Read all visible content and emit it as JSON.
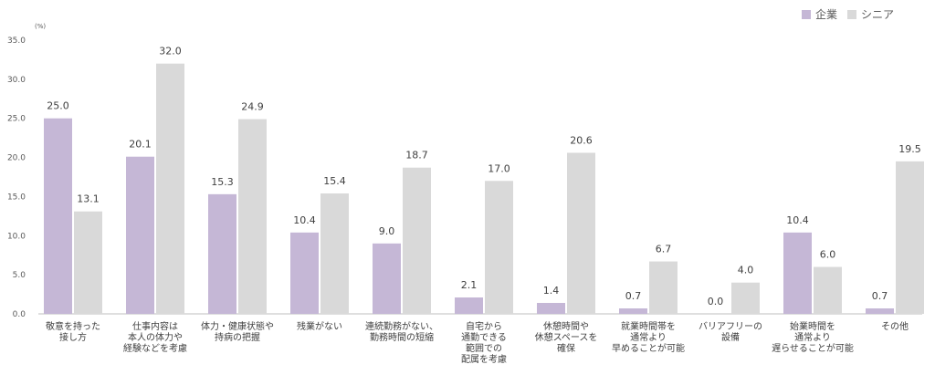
{
  "chart_data": {
    "type": "bar",
    "unit_label": "(%)",
    "ylim": [
      0,
      35
    ],
    "yticks": [
      "0.0",
      "5.0",
      "10.0",
      "15.0",
      "20.0",
      "25.0",
      "30.0",
      "35.0"
    ],
    "legend_position": "top-right",
    "categories": [
      [
        "敬意を持った",
        "接し方"
      ],
      [
        "仕事内容は",
        "本人の体力や",
        "経験などを考慮"
      ],
      [
        "体力・健康状態や",
        "持病の把握"
      ],
      [
        "残業がない"
      ],
      [
        "連続勤務がない、",
        "勤務時間の短縮"
      ],
      [
        "自宅から",
        "通勤できる",
        "範囲での",
        "配属を考慮"
      ],
      [
        "休憩時間や",
        "休憩スペースを",
        "確保"
      ],
      [
        "就業時間帯を",
        "通常より",
        "早めることが可能"
      ],
      [
        "バリアフリーの",
        "設備"
      ],
      [
        "始業時間を",
        "通常より",
        "遅らせることが可能"
      ],
      [
        "その他"
      ]
    ],
    "series": [
      {
        "name": "企業",
        "color": "#c5b7d6",
        "values": [
          25.0,
          20.1,
          15.3,
          10.4,
          9.0,
          2.1,
          1.4,
          0.7,
          0.0,
          10.4,
          0.7
        ],
        "labels": [
          "25.0",
          "20.1",
          "15.3",
          "10.4",
          "9.0",
          "2.1",
          "1.4",
          "0.7",
          "0.0",
          "10.4",
          "0.7"
        ]
      },
      {
        "name": "シニア",
        "color": "#d9d9d9",
        "values": [
          13.1,
          32.0,
          24.9,
          15.4,
          18.7,
          17.0,
          20.6,
          6.7,
          4.0,
          6.0,
          19.5
        ],
        "labels": [
          "13.1",
          "32.0",
          "24.9",
          "15.4",
          "18.7",
          "17.0",
          "20.6",
          "6.7",
          "4.0",
          "6.0",
          "19.5"
        ]
      }
    ]
  }
}
